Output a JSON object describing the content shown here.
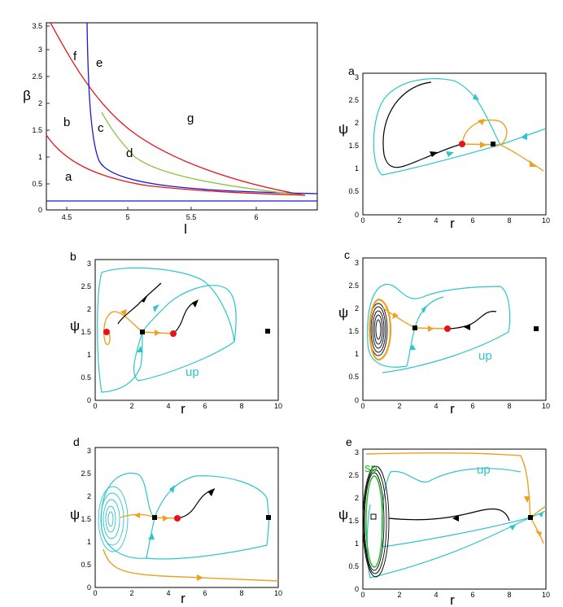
{
  "colors": {
    "red": "#e8131a",
    "blue": "#1a1ad0",
    "green": "#8cc43c",
    "cyan": "#2ec4cc",
    "orange": "#f0a020",
    "black": "#000000",
    "sp": "#22bb22"
  },
  "bifurcation": {
    "xlabel": "l",
    "ylabel": "β",
    "xticks": [
      "4.5",
      "5",
      "5.5",
      "6"
    ],
    "yticks": [
      "0",
      "0.5",
      "1",
      "1.5",
      "2",
      "2.5",
      "3",
      "3.5"
    ],
    "regions": [
      "a",
      "b",
      "c",
      "d",
      "e",
      "f",
      "g"
    ]
  },
  "phase_axes": {
    "xlabel": "r",
    "ylabel": "ψ",
    "xticks": [
      "0",
      "2",
      "4",
      "6",
      "8",
      "10"
    ],
    "yticks": [
      "0",
      "0.5",
      "1",
      "1.5",
      "2",
      "2.5",
      "3"
    ]
  },
  "panels": [
    {
      "letter": "a"
    },
    {
      "letter": "b",
      "tag": "up"
    },
    {
      "letter": "c",
      "tag": "up"
    },
    {
      "letter": "d"
    },
    {
      "letter": "e",
      "tag": "up",
      "tag2": "sp"
    }
  ]
}
